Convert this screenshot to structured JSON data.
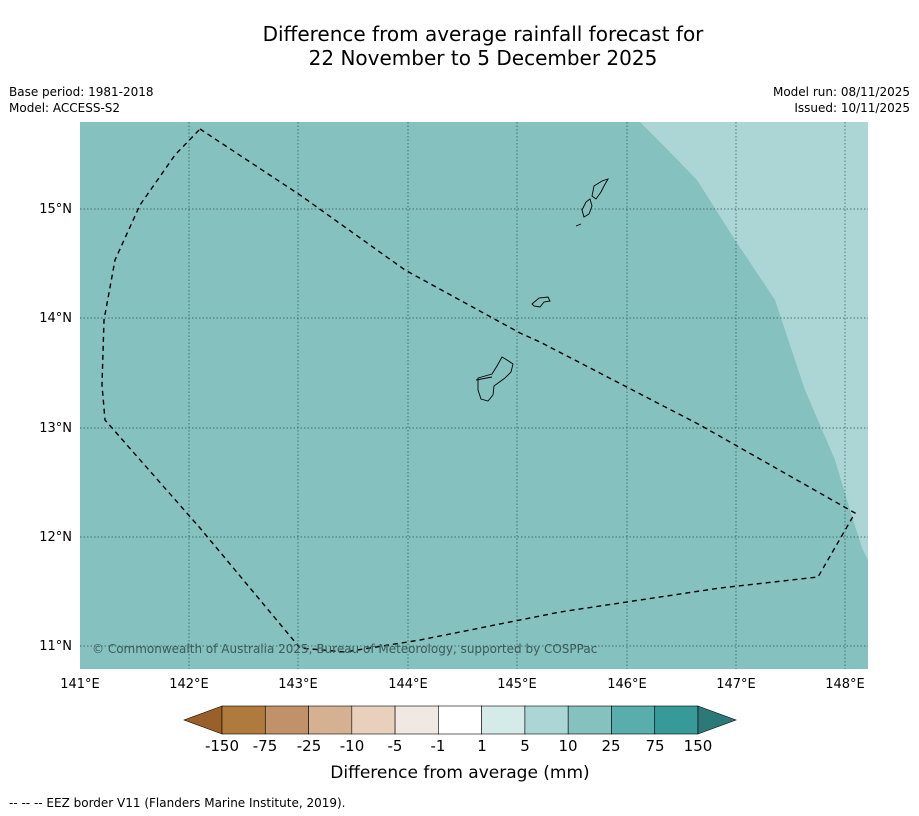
{
  "title_line1": "Difference from average rainfall forecast for",
  "title_line2": "22 November to 5 December 2025",
  "meta_left": [
    "Base period: 1981-2018",
    "Model: ACCESS-S2"
  ],
  "meta_right": [
    "Model run: 08/11/2025",
    "Issued: 10/11/2025"
  ],
  "copyright": "© Commonwealth of Australia 2025, Bureau of Meteorology, supported by COSPPac",
  "lat_labels": [
    "15°N",
    "14°N",
    "13°N",
    "12°N",
    "11°N"
  ],
  "lon_labels": [
    "141°E",
    "142°E",
    "143°E",
    "144°E",
    "145°E",
    "146°E",
    "147°E",
    "148°E"
  ],
  "colorbar": {
    "label": "Difference from average (mm)",
    "ticks": [
      "-150",
      "-75",
      "-25",
      "-10",
      "-5",
      "-1",
      "1",
      "5",
      "10",
      "25",
      "75",
      "150"
    ],
    "colors": [
      "#99602a",
      "#b07a3e",
      "#c1926a",
      "#d5b191",
      "#e8d0bd",
      "#efe8e3",
      "#ffffff",
      "#d4ebe9",
      "#acd6d5",
      "#84c1bf",
      "#59adab",
      "#359a98",
      "#2b7a77"
    ]
  },
  "footnote": "--  --  -- EEZ border V11 (Flanders Marine Institute, 2019)."
}
